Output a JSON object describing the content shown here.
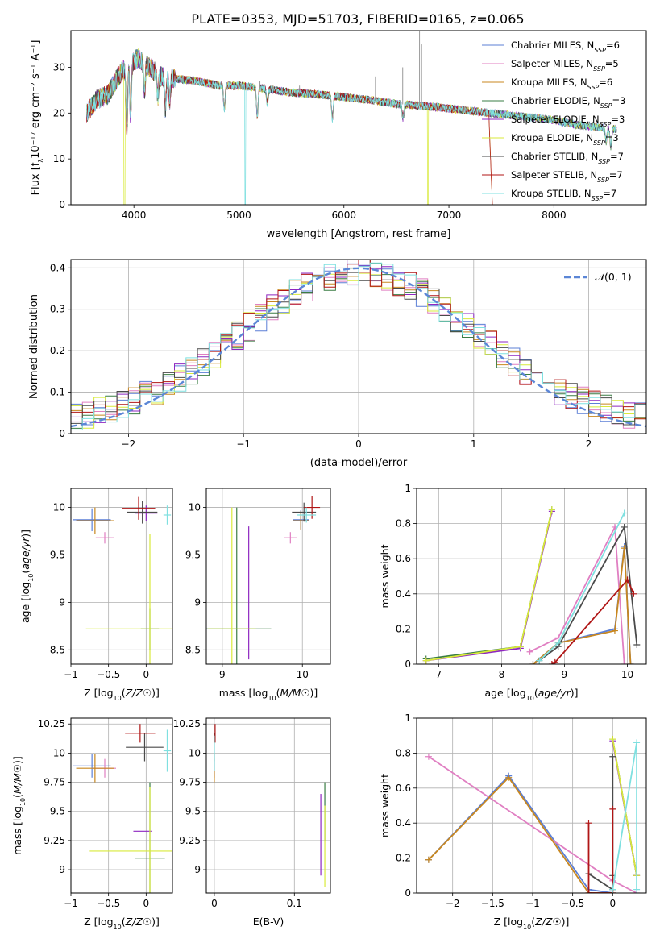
{
  "figure_title": "PLATE=0353, MJD=51703, FIBERID=0165, z=0.065",
  "colors": {
    "Chabrier MILES": "#5b7fd6",
    "Salpeter MILES": "#e07fc2",
    "Kroupa MILES": "#c8871f",
    "Chabrier ELODIE": "#3a7d44",
    "Salpeter ELODIE": "#8e27c0",
    "Kroupa ELODIE": "#d8ea3a",
    "Chabrier STELIB": "#4a4a4a",
    "Salpeter STELIB": "#b01515",
    "Kroupa STELIB": "#7fe0e0",
    "gaussian": "#5b86d6"
  },
  "chart_data": [
    {
      "id": "spectrum",
      "type": "line",
      "title": "PLATE=0353, MJD=51703, FIBERID=0165, z=0.065",
      "xlabel": "wavelength [Angstrom, rest frame]",
      "ylabel": "Flux [f_λ10^-17 erg cm^-2 s^-1 A^-1]",
      "xlim": [
        3400,
        8880
      ],
      "ylim": [
        0,
        38
      ],
      "xticks": [
        4000,
        5000,
        6000,
        7000,
        8000
      ],
      "yticks": [
        0,
        10,
        20,
        30
      ],
      "grid": false,
      "legend_position": "upper-right",
      "legend": [
        "Chabrier MILES, N_SSP=6",
        "Salpeter MILES, N_SSP=5",
        "Kroupa MILES, N_SSP=6",
        "Chabrier ELODIE, N_SSP=3",
        "Salpeter ELODIE, N_SSP=3",
        "Kroupa ELODIE, N_SSP=3",
        "Chabrier STELIB, N_SSP=7",
        "Salpeter STELIB, N_SSP=7",
        "Kroupa STELIB, N_SSP=7"
      ],
      "continuum": {
        "x": [
          3550,
          3650,
          3750,
          3850,
          3950,
          4050,
          4150,
          4250,
          4400,
          4600,
          4800,
          5000,
          5200,
          5500,
          5800,
          6000,
          6200,
          6500,
          6800,
          7000,
          7200,
          7400,
          7600,
          7800,
          8000,
          8200,
          8400,
          8600
        ],
        "y": [
          20,
          23,
          24,
          28,
          31,
          32,
          30,
          28,
          27.5,
          27,
          26,
          26,
          25.5,
          24.5,
          24,
          23.5,
          23,
          22,
          21.5,
          21,
          20.5,
          20,
          19.5,
          19,
          18.5,
          17.5,
          17,
          16.5
        ]
      },
      "absorption": [
        [
          3933,
          14
        ],
        [
          3968,
          12
        ],
        [
          4101,
          6
        ],
        [
          4227,
          5
        ],
        [
          4300,
          7
        ],
        [
          4340,
          5
        ],
        [
          4861,
          5
        ],
        [
          5175,
          6
        ],
        [
          5270,
          3
        ],
        [
          5890,
          5
        ],
        [
          6563,
          3
        ],
        [
          8498,
          3
        ],
        [
          8542,
          4
        ],
        [
          8662,
          3
        ]
      ],
      "emission_spikes": [
        [
          5200,
          27
        ],
        [
          5577,
          26
        ],
        [
          6300,
          28
        ],
        [
          6560,
          30
        ],
        [
          6720,
          38
        ],
        [
          6740,
          35
        ]
      ],
      "dropouts": [
        {
          "series": "Kroupa ELODIE",
          "x": 3910
        },
        {
          "series": "Kroupa STELIB",
          "x": 5060
        },
        {
          "series": "Kroupa ELODIE",
          "x": 6800
        }
      ],
      "red_cutoff": {
        "start": 7380,
        "end": 7420
      }
    },
    {
      "id": "residuals",
      "type": "histogram",
      "xlabel": "(data-model)/error",
      "ylabel": "Normed distribution",
      "xlim": [
        -2.5,
        2.5
      ],
      "ylim": [
        0,
        0.42
      ],
      "xticks": [
        -2,
        -1,
        0,
        1,
        2
      ],
      "yticks": [
        0.0,
        0.1,
        0.2,
        0.3,
        0.4
      ],
      "grid": true,
      "bin_width": 0.1,
      "legend": [
        "N(0,1)"
      ],
      "legend_position": "upper-right",
      "gaussian": {
        "mu": 0,
        "sigma": 1
      }
    },
    {
      "id": "age_vs_Z",
      "type": "errorbar",
      "xlabel": "Z [log10(Z/Z☉)]",
      "ylabel": "age  [log10(age/yr)]",
      "xlim": [
        -1.0,
        0.35
      ],
      "ylim": [
        8.35,
        10.2
      ],
      "xticks": [
        -1.0,
        -0.5,
        0.0
      ],
      "yticks": [
        8.5,
        9.0,
        9.5,
        10.0
      ],
      "grid": true,
      "points": [
        {
          "series": "Chabrier MILES",
          "x": -0.72,
          "y": 9.87,
          "xerr": 0.25,
          "yerr": 0.12
        },
        {
          "series": "Salpeter MILES",
          "x": -0.55,
          "y": 9.68,
          "xerr": 0.12,
          "yerr": 0.06
        },
        {
          "series": "Kroupa MILES",
          "x": -0.68,
          "y": 9.86,
          "xerr": 0.25,
          "yerr": 0.14
        },
        {
          "series": "Chabrier ELODIE",
          "x": 0.05,
          "y": 8.72,
          "xerr": 0.12,
          "yerr": 0.22
        },
        {
          "series": "Salpeter ELODIE",
          "x": 0.0,
          "y": 9.94,
          "xerr": 0.15,
          "yerr": 0.08
        },
        {
          "series": "Kroupa ELODIE",
          "x": 0.05,
          "y": 8.72,
          "xerr": 0.85,
          "yerr": 1.0
        },
        {
          "series": "Chabrier STELIB",
          "x": -0.05,
          "y": 9.95,
          "xerr": 0.2,
          "yerr": 0.12
        },
        {
          "series": "Salpeter STELIB",
          "x": -0.1,
          "y": 9.99,
          "xerr": 0.22,
          "yerr": 0.12
        },
        {
          "series": "Kroupa STELIB",
          "x": 0.28,
          "y": 9.92,
          "xerr": 0.05,
          "yerr": 0.1
        }
      ]
    },
    {
      "id": "age_vs_mass",
      "type": "errorbar",
      "xlabel": "mass [log10(M/M☉)]",
      "ylabel": "",
      "xlim": [
        8.8,
        10.35
      ],
      "ylim": [
        8.35,
        10.2
      ],
      "xticks": [
        9,
        10
      ],
      "yticks": [
        8.5,
        9.0,
        9.5,
        10.0
      ],
      "grid": true,
      "points": [
        {
          "series": "Chabrier MILES",
          "x": 9.98,
          "y": 9.87,
          "xerr": 0.1,
          "yerr": 0.1
        },
        {
          "series": "Salpeter MILES",
          "x": 9.85,
          "y": 9.68,
          "xerr": 0.08,
          "yerr": 0.06
        },
        {
          "series": "Kroupa MILES",
          "x": 9.98,
          "y": 9.86,
          "xerr": 0.1,
          "yerr": 0.1
        },
        {
          "series": "Chabrier ELODIE",
          "x": 9.18,
          "y": 8.72,
          "xerr": 0.43,
          "yerr": 1.28
        },
        {
          "series": "Salpeter ELODIE",
          "x": 9.33,
          "y": 9.1,
          "xerr": 0.0,
          "yerr": 0.7
        },
        {
          "series": "Kroupa ELODIE",
          "x": 9.12,
          "y": 8.72,
          "xerr": 0.3,
          "yerr": 1.28
        },
        {
          "series": "Chabrier STELIB",
          "x": 10.02,
          "y": 9.95,
          "xerr": 0.15,
          "yerr": 0.1
        },
        {
          "series": "Salpeter STELIB",
          "x": 10.12,
          "y": 10.0,
          "xerr": 0.1,
          "yerr": 0.12
        },
        {
          "series": "Kroupa STELIB",
          "x": 10.05,
          "y": 9.92,
          "xerr": 0.12,
          "yerr": 0.08
        }
      ]
    },
    {
      "id": "massweight_vs_age",
      "type": "line",
      "xlabel": "age  [log10(age/yr)]",
      "ylabel": "mass weight",
      "xlim": [
        6.65,
        10.3
      ],
      "ylim": [
        0,
        1.0
      ],
      "xticks": [
        7,
        8,
        9,
        10
      ],
      "yticks": [
        0.0,
        0.2,
        0.4,
        0.6,
        0.8,
        1.0
      ],
      "grid": true,
      "series": [
        {
          "name": "Chabrier MILES",
          "x": [
            8.5,
            8.9,
            9.8,
            9.95,
            10.05
          ],
          "y": [
            0.0,
            0.12,
            0.2,
            0.67,
            0.0
          ]
        },
        {
          "name": "Salpeter MILES",
          "x": [
            8.45,
            8.9,
            9.8,
            9.95
          ],
          "y": [
            0.07,
            0.15,
            0.78,
            0.0
          ]
        },
        {
          "name": "Kroupa MILES",
          "x": [
            8.5,
            8.9,
            9.8,
            9.95,
            10.05
          ],
          "y": [
            0.0,
            0.12,
            0.19,
            0.66,
            0.0
          ]
        },
        {
          "name": "Chabrier ELODIE",
          "x": [
            6.8,
            8.3,
            8.8
          ],
          "y": [
            0.03,
            0.1,
            0.88
          ]
        },
        {
          "name": "Salpeter ELODIE",
          "x": [
            6.8,
            8.3,
            8.8
          ],
          "y": [
            0.02,
            0.09,
            0.87
          ]
        },
        {
          "name": "Kroupa ELODIE",
          "x": [
            6.8,
            8.3,
            8.8
          ],
          "y": [
            0.02,
            0.1,
            0.88
          ]
        },
        {
          "name": "Chabrier STELIB",
          "x": [
            8.6,
            8.9,
            9.95,
            10.15
          ],
          "y": [
            0.02,
            0.1,
            0.78,
            0.11
          ]
        },
        {
          "name": "Salpeter STELIB",
          "x": [
            8.8,
            8.85,
            10.0,
            10.1
          ],
          "y": [
            0.0,
            0.01,
            0.48,
            0.4
          ]
        },
        {
          "name": "Kroupa STELIB",
          "x": [
            8.6,
            8.9,
            9.95
          ],
          "y": [
            0.02,
            0.12,
            0.86
          ]
        }
      ]
    },
    {
      "id": "mass_vs_Z",
      "type": "errorbar",
      "xlabel": "Z [log10(Z/Z☉)]",
      "ylabel": "mass [log10(M/M☉)]",
      "xlim": [
        -1.0,
        0.35
      ],
      "ylim": [
        8.8,
        10.3
      ],
      "xticks": [
        -1.0,
        -0.5,
        0.0
      ],
      "yticks": [
        9.0,
        9.25,
        9.5,
        9.75,
        10.0,
        10.25
      ],
      "grid": true,
      "points": [
        {
          "series": "Chabrier MILES",
          "x": -0.72,
          "y": 9.89,
          "xerr": 0.25,
          "yerr": 0.1
        },
        {
          "series": "Salpeter MILES",
          "x": -0.55,
          "y": 9.87,
          "xerr": 0.15,
          "yerr": 0.08
        },
        {
          "series": "Kroupa MILES",
          "x": -0.68,
          "y": 9.87,
          "xerr": 0.25,
          "yerr": 0.12
        },
        {
          "series": "Chabrier ELODIE",
          "x": 0.05,
          "y": 9.1,
          "xerr": 0.2,
          "yerr": 0.65
        },
        {
          "series": "Salpeter ELODIE",
          "x": -0.05,
          "y": 9.33,
          "xerr": 0.12,
          "yerr": 0.0
        },
        {
          "series": "Kroupa ELODIE",
          "x": 0.05,
          "y": 9.16,
          "xerr": 0.8,
          "yerr": 0.55
        },
        {
          "series": "Chabrier STELIB",
          "x": -0.02,
          "y": 10.05,
          "xerr": 0.25,
          "yerr": 0.12
        },
        {
          "series": "Salpeter STELIB",
          "x": -0.08,
          "y": 10.17,
          "xerr": 0.2,
          "yerr": 0.08
        },
        {
          "series": "Kroupa STELIB",
          "x": 0.28,
          "y": 10.02,
          "xerr": 0.05,
          "yerr": 0.18
        }
      ]
    },
    {
      "id": "mass_vs_EBV",
      "type": "errorbar",
      "xlabel": "E(B-V)",
      "ylabel": "",
      "xlim": [
        -0.01,
        0.145
      ],
      "ylim": [
        8.8,
        10.3
      ],
      "xticks": [
        0.0,
        0.1
      ],
      "yticks": [
        9.0,
        9.25,
        9.5,
        9.75,
        10.0,
        10.25
      ],
      "grid": true,
      "points": [
        {
          "series": "Chabrier MILES",
          "x": 0.0,
          "y": 9.89,
          "xerr": 0.0,
          "yerr": 0.1
        },
        {
          "series": "Salpeter MILES",
          "x": 0.0,
          "y": 9.87,
          "xerr": 0.0,
          "yerr": 0.08
        },
        {
          "series": "Kroupa MILES",
          "x": 0.0,
          "y": 9.87,
          "xerr": 0.0,
          "yerr": 0.12
        },
        {
          "series": "Chabrier ELODIE",
          "x": 0.138,
          "y": 9.5,
          "xerr": 0.0,
          "yerr": 0.25
        },
        {
          "series": "Salpeter ELODIE",
          "x": 0.133,
          "y": 9.3,
          "xerr": 0.0,
          "yerr": 0.35
        },
        {
          "series": "Kroupa ELODIE",
          "x": 0.138,
          "y": 9.2,
          "xerr": 0.0,
          "yerr": 0.35
        },
        {
          "series": "Chabrier STELIB",
          "x": 0.0,
          "y": 10.05,
          "xerr": 0.0,
          "yerr": 0.12
        },
        {
          "series": "Salpeter STELIB",
          "x": 0.001,
          "y": 10.17,
          "xerr": 0.0,
          "yerr": 0.08
        },
        {
          "series": "Kroupa STELIB",
          "x": 0.0,
          "y": 10.0,
          "xerr": 0.0,
          "yerr": 0.15
        }
      ]
    },
    {
      "id": "massweight_vs_Z",
      "type": "line",
      "xlabel": "Z [log10(Z/Z☉)]",
      "ylabel": "mass weight",
      "xlim": [
        -2.45,
        0.42
      ],
      "ylim": [
        0,
        1.0
      ],
      "xticks": [
        -2.0,
        -1.5,
        -1.0,
        -0.5,
        0.0
      ],
      "yticks": [
        0.0,
        0.2,
        0.4,
        0.6,
        0.8,
        1.0
      ],
      "grid": true,
      "series": [
        {
          "name": "Chabrier MILES",
          "x": [
            -2.3,
            -1.3,
            -0.3,
            0.0
          ],
          "y": [
            0.19,
            0.67,
            0.02,
            0.0
          ]
        },
        {
          "name": "Salpeter MILES",
          "x": [
            -2.3,
            0.0,
            0.3
          ],
          "y": [
            0.78,
            0.07,
            0.0
          ]
        },
        {
          "name": "Kroupa MILES",
          "x": [
            -2.3,
            -1.3,
            -0.3,
            0.0
          ],
          "y": [
            0.19,
            0.66,
            0.0,
            0.0
          ]
        },
        {
          "name": "Chabrier ELODIE",
          "x": [
            0.0,
            0.3
          ],
          "y": [
            0.88,
            0.1
          ]
        },
        {
          "name": "Salpeter ELODIE",
          "x": [
            0.0,
            0.3
          ],
          "y": [
            0.87,
            0.1
          ]
        },
        {
          "name": "Kroupa ELODIE",
          "x": [
            0.0,
            0.3
          ],
          "y": [
            0.88,
            0.1
          ]
        },
        {
          "name": "Chabrier STELIB",
          "x": [
            -0.3,
            0.0,
            0.0,
            0.0
          ],
          "y": [
            0.11,
            0.02,
            0.1,
            0.78
          ]
        },
        {
          "name": "Salpeter STELIB",
          "x": [
            -0.3,
            -0.3,
            0.0,
            0.0
          ],
          "y": [
            0.4,
            0.0,
            0.0,
            0.48
          ]
        },
        {
          "name": "Kroupa STELIB",
          "x": [
            0.0,
            0.3,
            0.3
          ],
          "y": [
            0.02,
            0.86,
            0.02
          ]
        }
      ]
    }
  ]
}
